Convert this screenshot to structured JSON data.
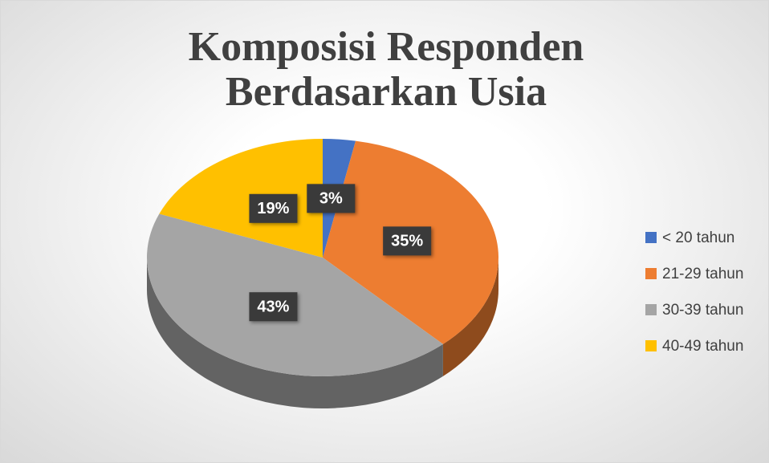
{
  "chart_data": {
    "type": "pie",
    "title": "Komposisi Responden Berdasarkan Usia",
    "categories": [
      "< 20 tahun",
      "21-29 tahun",
      "30-39 tahun",
      "40-49 tahun"
    ],
    "values": [
      3,
      35,
      43,
      19
    ],
    "value_labels": [
      "3%",
      "35%",
      "43%",
      "19%"
    ],
    "colors": [
      "#4472c4",
      "#ed7d31",
      "#a5a5a5",
      "#ffc000"
    ],
    "legend": "right"
  }
}
